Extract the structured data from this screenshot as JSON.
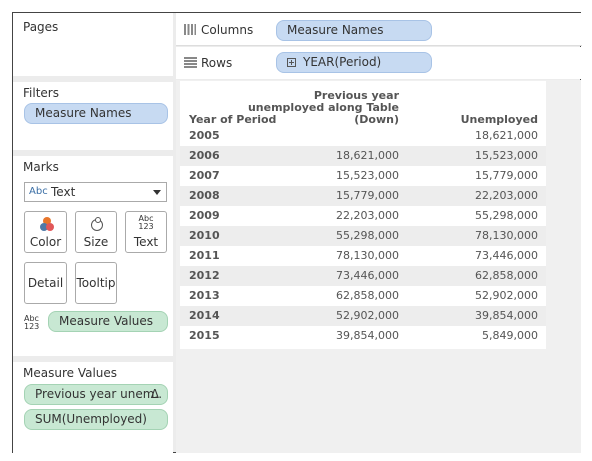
{
  "pages": {
    "title": "Pages"
  },
  "shelves": {
    "columns": {
      "label": "Columns",
      "pill": "Measure Names"
    },
    "rows": {
      "label": "Rows",
      "pill": "YEAR(Period)"
    }
  },
  "filters": {
    "title": "Filters",
    "pills": [
      "Measure Names"
    ]
  },
  "marks": {
    "title": "Marks",
    "mark_type": {
      "icon": "Abc",
      "label": "Text"
    },
    "buttons": {
      "color": "Color",
      "size": "Size",
      "text": "Text",
      "detail": "Detail",
      "tooltip": "Tooltip"
    },
    "text_icon": [
      "Abc",
      "123"
    ],
    "pill": {
      "icon": [
        "Abc",
        "123"
      ],
      "label": "Measure Values"
    }
  },
  "measure_values": {
    "title": "Measure Values",
    "pills": [
      {
        "label": "Previous year unem..",
        "badge": "Δ"
      },
      {
        "label": "SUM(Unemployed)"
      }
    ]
  },
  "table": {
    "headers": {
      "year": "Year of Period",
      "previous": [
        "Previous year",
        "unemployed along Table",
        "(Down)"
      ],
      "unemployed": "Unemployed"
    },
    "rows": [
      [
        "2005",
        null,
        "18,621,000"
      ],
      [
        "2006",
        "18,621,000",
        "15,523,000"
      ],
      [
        "2007",
        "15,523,000",
        "15,779,000"
      ],
      [
        "2008",
        "15,779,000",
        "22,203,000"
      ],
      [
        "2009",
        "22,203,000",
        "55,298,000"
      ],
      [
        "2010",
        "55,298,000",
        "78,130,000"
      ],
      [
        "2011",
        "78,130,000",
        "73,446,000"
      ],
      [
        "2012",
        "73,446,000",
        "62,858,000"
      ],
      [
        "2013",
        "62,858,000",
        "52,902,000"
      ],
      [
        "2014",
        "52,902,000",
        "39,854,000"
      ],
      [
        "2015",
        "39,854,000",
        "5,849,000"
      ]
    ]
  }
}
